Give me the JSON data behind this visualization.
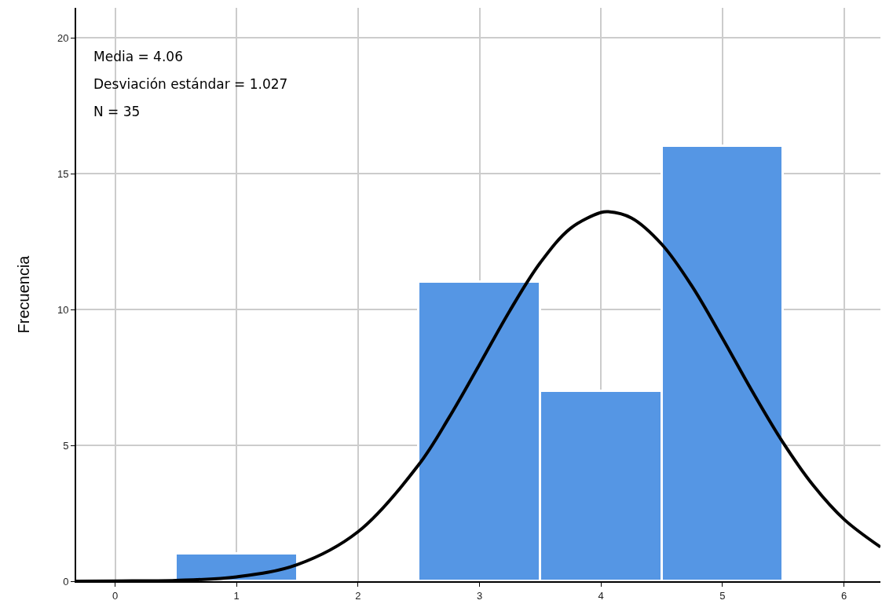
{
  "chart_data": {
    "type": "histogram",
    "ylabel": "Frecuencia",
    "bins": [
      0.5,
      1.5,
      2.5,
      3.5,
      4.5,
      5.5
    ],
    "values": [
      1,
      0,
      11,
      7,
      16
    ],
    "color": "#5596e4",
    "series": [
      {
        "type": "line",
        "color": "#000000",
        "x": [
          -0.32,
          0,
          0.5,
          1,
          1.5,
          2,
          2.5,
          2.75,
          3,
          3.25,
          3.5,
          3.75,
          4,
          4.06,
          4.25,
          4.5,
          4.75,
          5,
          5.25,
          5.5,
          5.75,
          6,
          6.3
        ],
        "values": [
          0,
          0.01,
          0.03,
          0.16,
          0.61,
          1.82,
          4.29,
          6.03,
          7.98,
          9.96,
          11.72,
          12.99,
          13.57,
          13.6,
          13.37,
          12.4,
          10.85,
          8.94,
          6.95,
          5.09,
          3.51,
          2.28,
          1.26
        ]
      }
    ],
    "annotations": [
      "Media = 4.06",
      "Desviación estándar = 1.027",
      "N = 35"
    ],
    "xlim": [
      -0.32,
      6.3
    ],
    "xticks": [
      0,
      1,
      2,
      3,
      4,
      5,
      6
    ],
    "ylim": [
      0,
      21.1
    ],
    "yticks": [
      0,
      5,
      10,
      15,
      20
    ],
    "grid": true
  }
}
